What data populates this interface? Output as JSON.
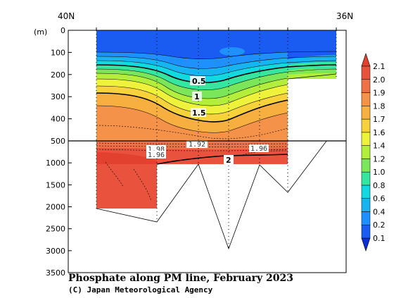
{
  "chart_data": {
    "type": "heatmap",
    "title": "Phosphate along PM line, February 2023",
    "credit": "(C) Japan Meteorological Agency",
    "x_axis": {
      "left_label": "40N",
      "right_label": "36N"
    },
    "y_axis": {
      "unit": "(m)",
      "upper_ticks": [
        "0",
        "100",
        "200",
        "300",
        "400",
        "500"
      ],
      "lower_ticks": [
        "1000",
        "1500",
        "2000",
        "2500",
        "3000",
        "3500"
      ],
      "upper_range": [
        0,
        500
      ],
      "lower_range": [
        500,
        3500
      ]
    },
    "colorbar": {
      "levels": [
        "0.1",
        "0.2",
        "0.4",
        "0.6",
        "0.8",
        "1.0",
        "1.2",
        "1.4",
        "1.6",
        "1.7",
        "1.8",
        "1.9",
        "2.0",
        "2.1"
      ],
      "colors": [
        "#0b2fd6",
        "#1a5cf2",
        "#1e90ff",
        "#16b4f0",
        "#12d8e0",
        "#36e6a0",
        "#7ce65a",
        "#b4ee3c",
        "#eef23a",
        "#f7d23a",
        "#f7b040",
        "#f4934a",
        "#ee7148",
        "#e9533d",
        "#e3412f"
      ]
    },
    "contour_labels": [
      "0.5",
      "1",
      "1.5",
      "2"
    ],
    "small_contour_labels": [
      "1.92",
      "1.98",
      "1.96",
      "1.96",
      "2"
    ]
  }
}
